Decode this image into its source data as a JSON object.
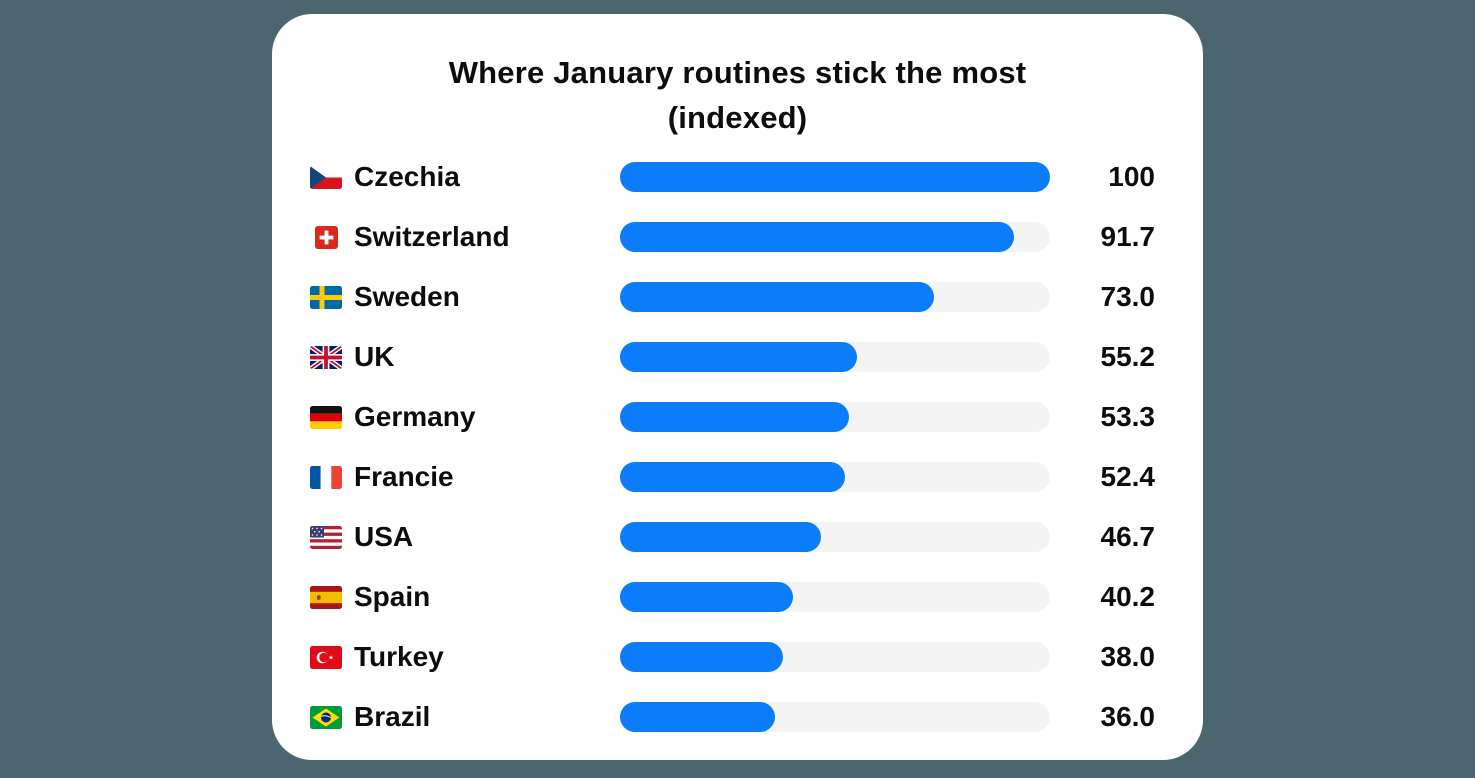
{
  "header": {
    "title_lines": [
      "Where January routines stick the most",
      "(indexed)"
    ]
  },
  "chart_data": {
    "type": "bar",
    "orientation": "horizontal",
    "title": "Where January routines stick the most (indexed)",
    "max_value": 100,
    "legend": "none",
    "grid": "off",
    "colors": {
      "bar": "#0B7CFA",
      "track": "#F4F4F5",
      "background": "#4C6670",
      "card": "#FFFFFF",
      "text": "#0D0D0D"
    },
    "categories": [
      "Czechia",
      "Switzerland",
      "Sweden",
      "UK",
      "Germany",
      "Francie",
      "USA",
      "Spain",
      "Turkey",
      "Brazil"
    ],
    "values": [
      100,
      91.7,
      73.0,
      55.2,
      53.3,
      52.4,
      46.7,
      40.2,
      38.0,
      36.0
    ],
    "rows": [
      {
        "country": "Czechia",
        "flag_icon": "flag-czechia-icon",
        "flag_emoji": "🇨🇿",
        "value": 100,
        "value_label": "100"
      },
      {
        "country": "Switzerland",
        "flag_icon": "flag-switzerland-icon",
        "flag_emoji": "🇨🇭",
        "value": 91.7,
        "value_label": "91.7"
      },
      {
        "country": "Sweden",
        "flag_icon": "flag-sweden-icon",
        "flag_emoji": "🇸🇪",
        "value": 73.0,
        "value_label": "73.0"
      },
      {
        "country": "UK",
        "flag_icon": "flag-uk-icon",
        "flag_emoji": "🇬🇧",
        "value": 55.2,
        "value_label": "55.2"
      },
      {
        "country": "Germany",
        "flag_icon": "flag-germany-icon",
        "flag_emoji": "🇩🇪",
        "value": 53.3,
        "value_label": "53.3"
      },
      {
        "country": "Francie",
        "flag_icon": "flag-france-icon",
        "flag_emoji": "🇫🇷",
        "value": 52.4,
        "value_label": "52.4"
      },
      {
        "country": "USA",
        "flag_icon": "flag-usa-icon",
        "flag_emoji": "🇺🇸",
        "value": 46.7,
        "value_label": "46.7"
      },
      {
        "country": "Spain",
        "flag_icon": "flag-spain-icon",
        "flag_emoji": "🇪🇸",
        "value": 40.2,
        "value_label": "40.2"
      },
      {
        "country": "Turkey",
        "flag_icon": "flag-turkey-icon",
        "flag_emoji": "🇹🇷",
        "value": 38.0,
        "value_label": "38.0"
      },
      {
        "country": "Brazil",
        "flag_icon": "flag-brazil-icon",
        "flag_emoji": "🇧🇷",
        "value": 36.0,
        "value_label": "36.0"
      }
    ]
  }
}
